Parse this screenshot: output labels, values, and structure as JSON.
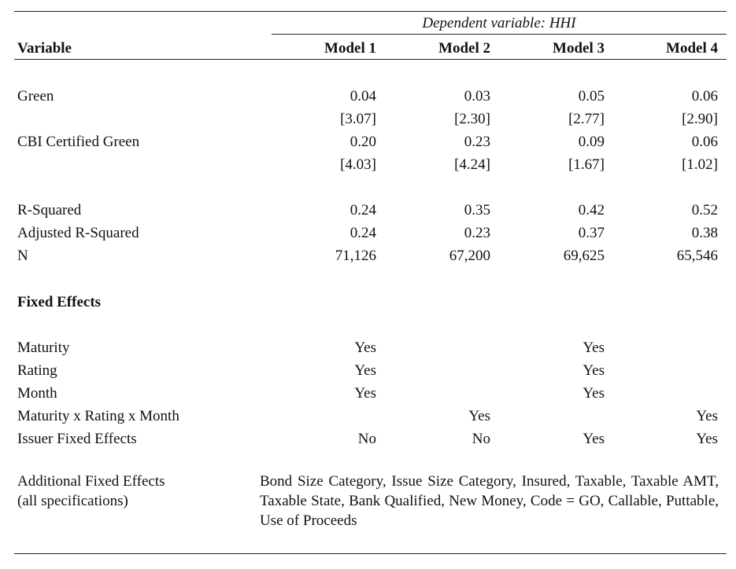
{
  "header": {
    "dependent_variable": "Dependent variable: HHI",
    "variable_label": "Variable",
    "models": [
      "Model 1",
      "Model 2",
      "Model 3",
      "Model 4"
    ]
  },
  "coefficients": [
    {
      "name": "Green",
      "values": [
        "0.04",
        "0.03",
        "0.05",
        "0.06"
      ],
      "tstats": [
        "[3.07]",
        "[2.30]",
        "[2.77]",
        "[2.90]"
      ]
    },
    {
      "name": "CBI Certified Green",
      "values": [
        "0.20",
        "0.23",
        "0.09",
        "0.06"
      ],
      "tstats": [
        "[4.03]",
        "[4.24]",
        "[1.67]",
        "[1.02]"
      ]
    }
  ],
  "stats": [
    {
      "name": "R-Squared",
      "values": [
        "0.24",
        "0.35",
        "0.42",
        "0.52"
      ]
    },
    {
      "name": "Adjusted R-Squared",
      "values": [
        "0.24",
        "0.23",
        "0.37",
        "0.38"
      ]
    },
    {
      "name": "N",
      "values": [
        "71,126",
        "67,200",
        "69,625",
        "65,546"
      ]
    }
  ],
  "fixed_effects_heading": "Fixed Effects",
  "fixed_effects": [
    {
      "name": "Maturity",
      "values": [
        "Yes",
        "",
        "Yes",
        ""
      ]
    },
    {
      "name": "Rating",
      "values": [
        "Yes",
        "",
        "Yes",
        ""
      ]
    },
    {
      "name": "Month",
      "values": [
        "Yes",
        "",
        "Yes",
        ""
      ]
    },
    {
      "name": "Maturity x Rating x Month",
      "values": [
        "",
        "Yes",
        "",
        "Yes"
      ]
    },
    {
      "name": "Issuer Fixed Effects",
      "values": [
        "No",
        "No",
        "Yes",
        "Yes"
      ]
    }
  ],
  "additional": {
    "label_line1": "Additional Fixed Effects",
    "label_line2": "(all specifications)",
    "text": "Bond Size Category, Issue Size Category, Insured, Taxable, Taxable AMT, Taxable State, Bank Qualified, New Money, Code = GO, Callable, Puttable, Use of Proceeds"
  }
}
